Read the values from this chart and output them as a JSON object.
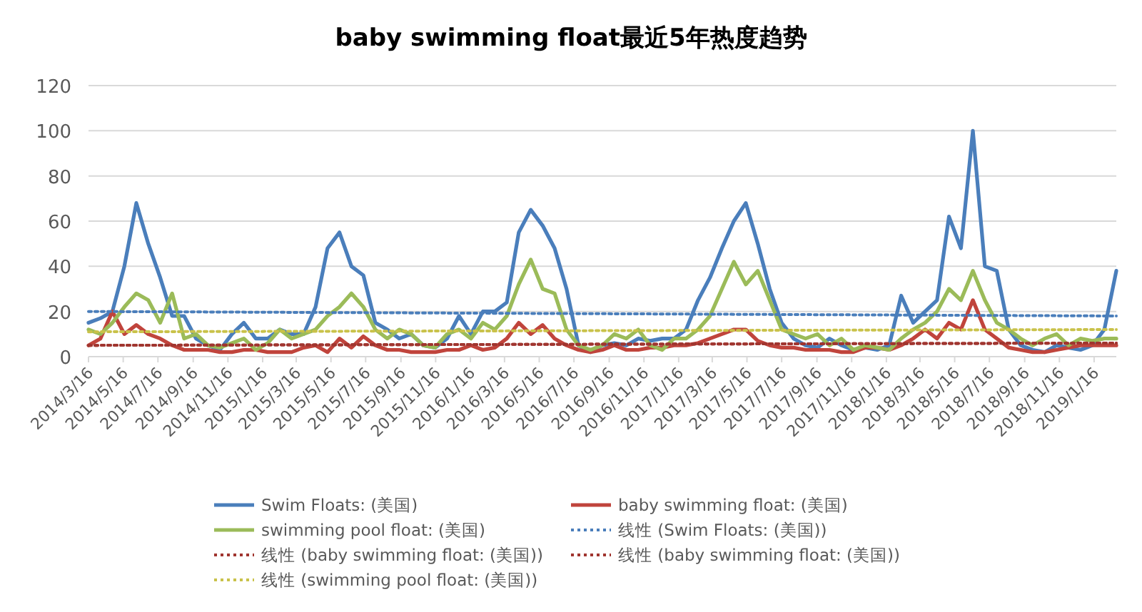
{
  "chart_data": {
    "type": "line",
    "title": "baby swimming float最近5年热度趋势",
    "x": [
      "2014-03-16",
      "2014-04-06",
      "2014-04-27",
      "2014-05-18",
      "2014-06-08",
      "2014-06-29",
      "2014-07-20",
      "2014-08-10",
      "2014-08-31",
      "2014-09-21",
      "2014-10-12",
      "2014-11-02",
      "2014-11-23",
      "2014-12-14",
      "2015-01-04",
      "2015-01-25",
      "2015-02-15",
      "2015-03-08",
      "2015-03-29",
      "2015-04-19",
      "2015-05-10",
      "2015-05-31",
      "2015-06-21",
      "2015-07-12",
      "2015-08-02",
      "2015-08-23",
      "2015-09-13",
      "2015-10-04",
      "2015-10-25",
      "2015-11-15",
      "2015-12-06",
      "2015-12-27",
      "2016-01-17",
      "2016-02-07",
      "2016-02-28",
      "2016-03-20",
      "2016-04-10",
      "2016-05-01",
      "2016-05-22",
      "2016-06-12",
      "2016-07-03",
      "2016-07-24",
      "2016-08-14",
      "2016-09-04",
      "2016-09-25",
      "2016-10-16",
      "2016-11-06",
      "2016-11-27",
      "2016-12-18",
      "2017-01-08",
      "2017-01-29",
      "2017-02-19",
      "2017-03-12",
      "2017-04-02",
      "2017-04-23",
      "2017-05-14",
      "2017-06-04",
      "2017-06-25",
      "2017-07-16",
      "2017-08-06",
      "2017-08-27",
      "2017-09-17",
      "2017-10-08",
      "2017-10-29",
      "2017-11-19",
      "2017-12-10",
      "2017-12-31",
      "2018-01-21",
      "2018-02-11",
      "2018-03-04",
      "2018-03-25",
      "2018-04-15",
      "2018-05-06",
      "2018-05-27",
      "2018-06-17",
      "2018-07-08",
      "2018-07-29",
      "2018-08-19",
      "2018-09-09",
      "2018-09-30",
      "2018-10-21",
      "2018-11-11",
      "2018-12-02",
      "2018-12-23",
      "2019-01-13",
      "2019-02-03",
      "2019-02-24"
    ],
    "series": [
      {
        "name": "Swim Floats: (美国)",
        "color": "#4a7ebb",
        "values": [
          15,
          17,
          20,
          40,
          68,
          50,
          35,
          18,
          18,
          8,
          5,
          3,
          10,
          15,
          8,
          8,
          12,
          10,
          10,
          22,
          48,
          55,
          40,
          36,
          15,
          12,
          8,
          10,
          5,
          4,
          8,
          18,
          10,
          20,
          20,
          24,
          55,
          65,
          58,
          48,
          30,
          5,
          2,
          5,
          6,
          5,
          8,
          7,
          8,
          8,
          12,
          25,
          35,
          48,
          60,
          68,
          50,
          30,
          15,
          8,
          5,
          4,
          8,
          5,
          3,
          4,
          3,
          5,
          27,
          15,
          20,
          25,
          62,
          48,
          100,
          40,
          38,
          12,
          5,
          3,
          2,
          5,
          4,
          3,
          5,
          12,
          38
        ]
      },
      {
        "name": "baby swimming float: (美国)",
        "color": "#c0443c",
        "values": [
          5,
          8,
          20,
          10,
          14,
          10,
          8,
          5,
          3,
          3,
          3,
          2,
          2,
          3,
          3,
          2,
          2,
          2,
          4,
          5,
          2,
          8,
          4,
          9,
          5,
          3,
          3,
          2,
          2,
          2,
          3,
          3,
          5,
          3,
          4,
          8,
          15,
          10,
          14,
          8,
          5,
          3,
          2,
          3,
          5,
          3,
          3,
          4,
          4,
          5,
          5,
          6,
          8,
          10,
          12,
          12,
          7,
          5,
          4,
          4,
          3,
          3,
          3,
          2,
          2,
          4,
          4,
          3,
          5,
          8,
          12,
          8,
          15,
          12,
          25,
          12,
          8,
          4,
          3,
          2,
          2,
          3,
          4,
          5,
          5,
          5,
          5
        ]
      },
      {
        "name": "swimming pool float: (美国)",
        "color": "#9bbb59",
        "values": [
          12,
          10,
          15,
          22,
          28,
          25,
          15,
          28,
          8,
          10,
          5,
          4,
          6,
          8,
          3,
          6,
          12,
          8,
          10,
          12,
          18,
          22,
          28,
          22,
          12,
          8,
          12,
          10,
          5,
          4,
          10,
          12,
          8,
          15,
          12,
          18,
          32,
          43,
          30,
          28,
          12,
          5,
          3,
          5,
          10,
          8,
          12,
          5,
          3,
          8,
          8,
          12,
          18,
          30,
          42,
          32,
          38,
          25,
          12,
          10,
          8,
          10,
          5,
          8,
          3,
          5,
          4,
          3,
          8,
          12,
          15,
          20,
          30,
          25,
          38,
          25,
          15,
          12,
          8,
          5,
          8,
          10,
          5,
          8,
          7,
          8,
          8
        ]
      },
      {
        "name": "线性 (Swim Floats: (美国))",
        "type": "line",
        "line_style": "dotted",
        "color": "#4a7ebb",
        "x": [
          "2014-03-16",
          "2019-02-24"
        ],
        "values": [
          20,
          18
        ]
      },
      {
        "name": "线性 (baby swimming float: (美国))",
        "type": "line",
        "line_style": "dotted",
        "color": "#a0352f",
        "x": [
          "2014-03-16",
          "2019-02-24"
        ],
        "values": [
          5,
          6
        ]
      },
      {
        "name": "线性 (baby swimming float: (美国))",
        "type": "line",
        "line_style": "dotted",
        "color": "#a0352f",
        "x": [
          "2014-03-16",
          "2019-02-24"
        ],
        "values": [
          5,
          6
        ]
      },
      {
        "name": "线性 (swimming pool float: (美国))",
        "type": "line",
        "line_style": "dotted",
        "color": "#c9c24a",
        "x": [
          "2014-03-16",
          "2019-02-24"
        ],
        "values": [
          11,
          12
        ]
      }
    ],
    "xlim": [
      "2014-03-16",
      "2019-02-24"
    ],
    "xticks": [
      {
        "value": "2014-03-16",
        "label": "2014/3/16"
      },
      {
        "value": "2014-05-16",
        "label": "2014/5/16"
      },
      {
        "value": "2014-07-16",
        "label": "2014/7/16"
      },
      {
        "value": "2014-09-16",
        "label": "2014/9/16"
      },
      {
        "value": "2014-11-16",
        "label": "2014/11/16"
      },
      {
        "value": "2015-01-16",
        "label": "2015/1/16"
      },
      {
        "value": "2015-03-16",
        "label": "2015/3/16"
      },
      {
        "value": "2015-05-16",
        "label": "2015/5/16"
      },
      {
        "value": "2015-07-16",
        "label": "2015/7/16"
      },
      {
        "value": "2015-09-16",
        "label": "2015/9/16"
      },
      {
        "value": "2015-11-16",
        "label": "2015/11/16"
      },
      {
        "value": "2016-01-16",
        "label": "2016/1/16"
      },
      {
        "value": "2016-03-16",
        "label": "2016/3/16"
      },
      {
        "value": "2016-05-16",
        "label": "2016/5/16"
      },
      {
        "value": "2016-07-16",
        "label": "2016/7/16"
      },
      {
        "value": "2016-09-16",
        "label": "2016/9/16"
      },
      {
        "value": "2016-11-16",
        "label": "2016/11/16"
      },
      {
        "value": "2017-01-16",
        "label": "2017/1/16"
      },
      {
        "value": "2017-03-16",
        "label": "2017/3/16"
      },
      {
        "value": "2017-05-16",
        "label": "2017/5/16"
      },
      {
        "value": "2017-07-16",
        "label": "2017/7/16"
      },
      {
        "value": "2017-09-16",
        "label": "2017/9/16"
      },
      {
        "value": "2017-11-16",
        "label": "2017/11/16"
      },
      {
        "value": "2018-01-16",
        "label": "2018/1/16"
      },
      {
        "value": "2018-03-16",
        "label": "2018/3/16"
      },
      {
        "value": "2018-05-16",
        "label": "2018/5/16"
      },
      {
        "value": "2018-07-16",
        "label": "2018/7/16"
      },
      {
        "value": "2018-09-16",
        "label": "2018/9/16"
      },
      {
        "value": "2018-11-16",
        "label": "2018/11/16"
      },
      {
        "value": "2019-01-16",
        "label": "2019/1/16"
      }
    ],
    "ylim": [
      0,
      120
    ],
    "yticks": [
      0,
      20,
      40,
      60,
      80,
      100,
      120
    ],
    "grid": "y",
    "legend": "bottom"
  }
}
